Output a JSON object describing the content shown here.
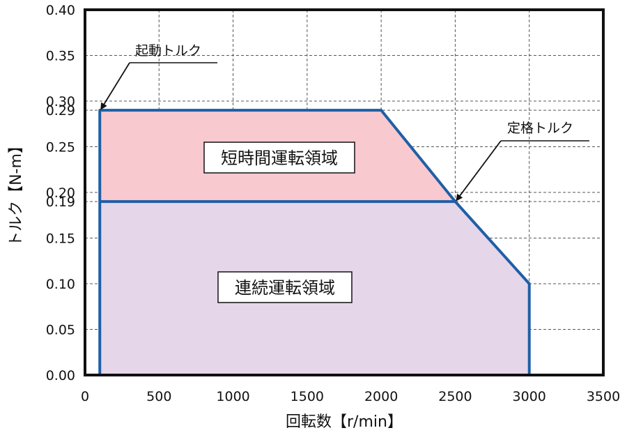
{
  "chart_data": {
    "type": "area",
    "xlabel": "回転数【r/min】",
    "ylabel": "トルク【N-m】",
    "xlim": [
      0,
      3500
    ],
    "ylim": [
      0,
      0.4
    ],
    "x_ticks": [
      0,
      500,
      1000,
      1500,
      2000,
      2500,
      3000,
      3500
    ],
    "x_tick_labels": [
      "0",
      "500",
      "1000",
      "1500",
      "2000",
      "2500",
      "3000",
      "3500"
    ],
    "y_ticks": [
      0,
      0.05,
      0.1,
      0.15,
      0.19,
      0.2,
      0.25,
      0.29,
      0.3,
      0.35,
      0.4
    ],
    "y_tick_labels": [
      "0.00",
      "0.05",
      "0.10",
      "0.15",
      "0.19",
      "0.20",
      "0.25",
      "0.29",
      "0.30",
      "0.35",
      "0.40"
    ],
    "grid": true,
    "series": [
      {
        "name": "短時間運転領域",
        "color": "#f8c9cf",
        "points": [
          [
            100,
            0.29
          ],
          [
            2000,
            0.29
          ],
          [
            2500,
            0.19
          ],
          [
            100,
            0.19
          ]
        ]
      },
      {
        "name": "連続運転領域",
        "color": "#e6d6ea",
        "points": [
          [
            100,
            0
          ],
          [
            100,
            0.19
          ],
          [
            2500,
            0.19
          ],
          [
            3000,
            0.1
          ],
          [
            3000,
            0
          ]
        ]
      }
    ],
    "boundary": {
      "color": "#1f5fa6",
      "points": [
        [
          100,
          0
        ],
        [
          100,
          0.29
        ],
        [
          2000,
          0.29
        ],
        [
          2500,
          0.19
        ],
        [
          3000,
          0.1
        ],
        [
          3000,
          0
        ]
      ],
      "continuous_line": [
        [
          100,
          0.19
        ],
        [
          2500,
          0.19
        ]
      ]
    },
    "annotations": [
      {
        "text": "起動トルク",
        "point": [
          100,
          0.29
        ]
      },
      {
        "text": "定格トルク",
        "point": [
          2500,
          0.19
        ]
      }
    ]
  }
}
